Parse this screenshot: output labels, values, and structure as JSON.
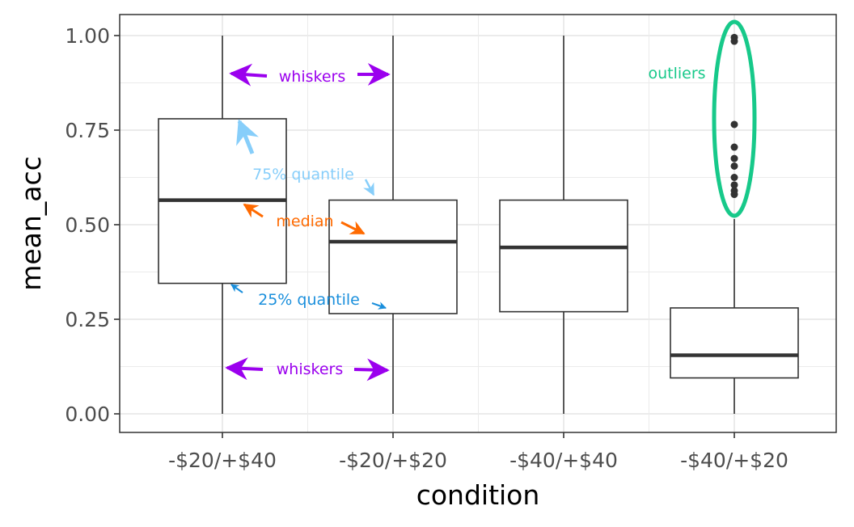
{
  "chart_data": {
    "type": "boxplot",
    "xlabel": "condition",
    "ylabel": "mean_acc",
    "ylim": [
      -0.05,
      1.05
    ],
    "yticks": [
      0.0,
      0.25,
      0.5,
      0.75,
      1.0
    ],
    "ytick_labels": [
      "0.00",
      "0.25",
      "0.50",
      "0.75",
      "1.00"
    ],
    "grid": true,
    "categories": [
      "-$20/+$40",
      "-$20/+$20",
      "-$40/+$40",
      "-$40/+$20"
    ],
    "boxes": [
      {
        "category": "-$20/+$40",
        "whisker_low": 0.0,
        "q1": 0.345,
        "median": 0.565,
        "q3": 0.78,
        "whisker_high": 1.0,
        "outliers": []
      },
      {
        "category": "-$20/+$20",
        "whisker_low": 0.0,
        "q1": 0.265,
        "median": 0.455,
        "q3": 0.565,
        "whisker_high": 1.0,
        "outliers": []
      },
      {
        "category": "-$40/+$40",
        "whisker_low": 0.0,
        "q1": 0.27,
        "median": 0.44,
        "q3": 0.565,
        "whisker_high": 1.0,
        "outliers": []
      },
      {
        "category": "-$40/+$20",
        "whisker_low": 0.0,
        "q1": 0.095,
        "median": 0.155,
        "q3": 0.28,
        "whisker_high": 0.515,
        "outliers": [
          0.58,
          0.59,
          0.605,
          0.625,
          0.655,
          0.675,
          0.705,
          0.765,
          0.985,
          0.995
        ]
      }
    ],
    "annotations": {
      "whiskers_top": "whiskers",
      "whiskers_bottom": "whiskers",
      "q75": "75% quantile",
      "median": "median",
      "q25": "25% quantile",
      "outliers": "outliers"
    },
    "colors": {
      "whiskers": "#9b00ee",
      "q75": "#87cefa",
      "median": "#ff6a00",
      "q25": "#1a8fdc",
      "outliers": "#17c98a",
      "box": "#333333",
      "grid": "#ebebeb"
    }
  }
}
